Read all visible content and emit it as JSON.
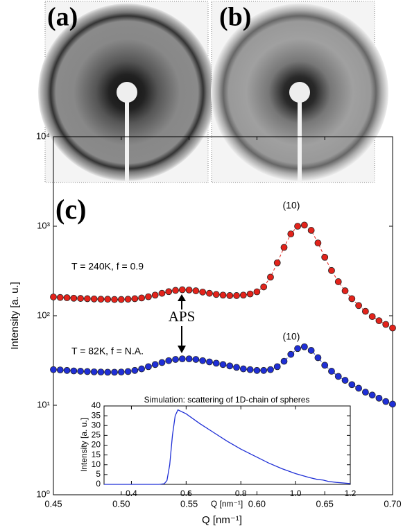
{
  "panels": [
    {
      "label": "(a)"
    },
    {
      "label": "(b)"
    }
  ],
  "chart_data": [
    {
      "type": "scatter",
      "log_y": true,
      "xlabel": "Q [nm⁻¹]",
      "ylabel": "Intensity [a. u.]",
      "xlim": [
        0.45,
        0.7
      ],
      "xticks": [
        0.45,
        {
          "value": 0.5,
          "label": "0.50"
        },
        0.55,
        {
          "value": 0.6,
          "label": "0.60"
        },
        0.65,
        {
          "value": 0.7,
          "label": "0.70"
        }
      ],
      "ylim": [
        1,
        10000
      ],
      "yticks": [
        {
          "value": 1,
          "label": "10⁰"
        },
        {
          "value": 10,
          "label": "10¹"
        },
        {
          "value": 100,
          "label": "10²"
        },
        {
          "value": 1000,
          "label": "10³"
        },
        {
          "value": 10000,
          "label": "10⁴"
        }
      ],
      "x": [
        0.45,
        0.455,
        0.46,
        0.465,
        0.47,
        0.475,
        0.48,
        0.485,
        0.49,
        0.495,
        0.5,
        0.505,
        0.51,
        0.515,
        0.52,
        0.525,
        0.53,
        0.535,
        0.54,
        0.545,
        0.55,
        0.555,
        0.56,
        0.565,
        0.57,
        0.575,
        0.58,
        0.585,
        0.59,
        0.595,
        0.6,
        0.605,
        0.61,
        0.615,
        0.62,
        0.625,
        0.63,
        0.635,
        0.64,
        0.645,
        0.65,
        0.655,
        0.66,
        0.665,
        0.67,
        0.675,
        0.68,
        0.685,
        0.69,
        0.695,
        0.7
      ],
      "series": [
        {
          "color": "#e3231b",
          "values": [
            162,
            160,
            159,
            157,
            156,
            155,
            154,
            153,
            153,
            152,
            152,
            153,
            155,
            158,
            163,
            170,
            178,
            186,
            192,
            195,
            194,
            190,
            184,
            178,
            173,
            170,
            168,
            168,
            170,
            175,
            185,
            210,
            270,
            390,
            580,
            820,
            1000,
            1030,
            900,
            650,
            450,
            320,
            240,
            190,
            155,
            130,
            112,
            98,
            88,
            80,
            73
          ]
        },
        {
          "color": "#1f2fd6",
          "values": [
            25,
            24.8,
            24.5,
            24.2,
            24,
            23.8,
            23.6,
            23.5,
            23.4,
            23.4,
            23.5,
            23.8,
            24.5,
            25.5,
            27,
            28.5,
            30,
            31.5,
            32.5,
            33,
            33,
            32.5,
            31.5,
            30.5,
            29.5,
            28.5,
            27.5,
            26.5,
            25.5,
            25,
            24.5,
            24.5,
            25,
            27,
            31,
            37,
            43,
            45,
            41,
            34,
            28,
            24,
            21,
            19,
            17,
            15.5,
            14,
            13,
            12,
            11,
            10.3
          ]
        }
      ],
      "annotations": [
        {
          "text": "(c)"
        },
        {
          "text": "(10)"
        },
        {
          "text": "(10)"
        },
        {
          "text": "T = 240K, f = 0.9"
        },
        {
          "text": "T = 82K, f = N.A."
        },
        {
          "text": "APS"
        }
      ]
    },
    {
      "type": "line",
      "title": "Simulation: scattering of 1D-chain of spheres",
      "xlabel": "Q [nm⁻¹]",
      "ylabel": "Intensity [a. u.]",
      "xlim": [
        0.3,
        1.2
      ],
      "xticks": [
        0.4,
        0.6,
        0.8,
        {
          "value": 1,
          "label": "1.0"
        },
        1.2
      ],
      "ylim": [
        0,
        40
      ],
      "yticks": [
        0,
        5,
        10,
        15,
        20,
        25,
        30,
        35,
        40
      ],
      "x": [
        0.3,
        0.5,
        0.52,
        0.53,
        0.54,
        0.55,
        0.56,
        0.57,
        0.6,
        0.65,
        0.7,
        0.75,
        0.8,
        0.85,
        0.9,
        0.95,
        1.0,
        1.05,
        1.08,
        1.1,
        1.12,
        1.15,
        1.2
      ],
      "series": [
        {
          "color": "#1f2fd6",
          "values": [
            0,
            0,
            0.3,
            2,
            10,
            25,
            35,
            38,
            36,
            31,
            26.5,
            22,
            18,
            14.5,
            11,
            8,
            5.5,
            3.5,
            2.5,
            2.2,
            1.5,
            1,
            0.4
          ]
        }
      ]
    }
  ]
}
